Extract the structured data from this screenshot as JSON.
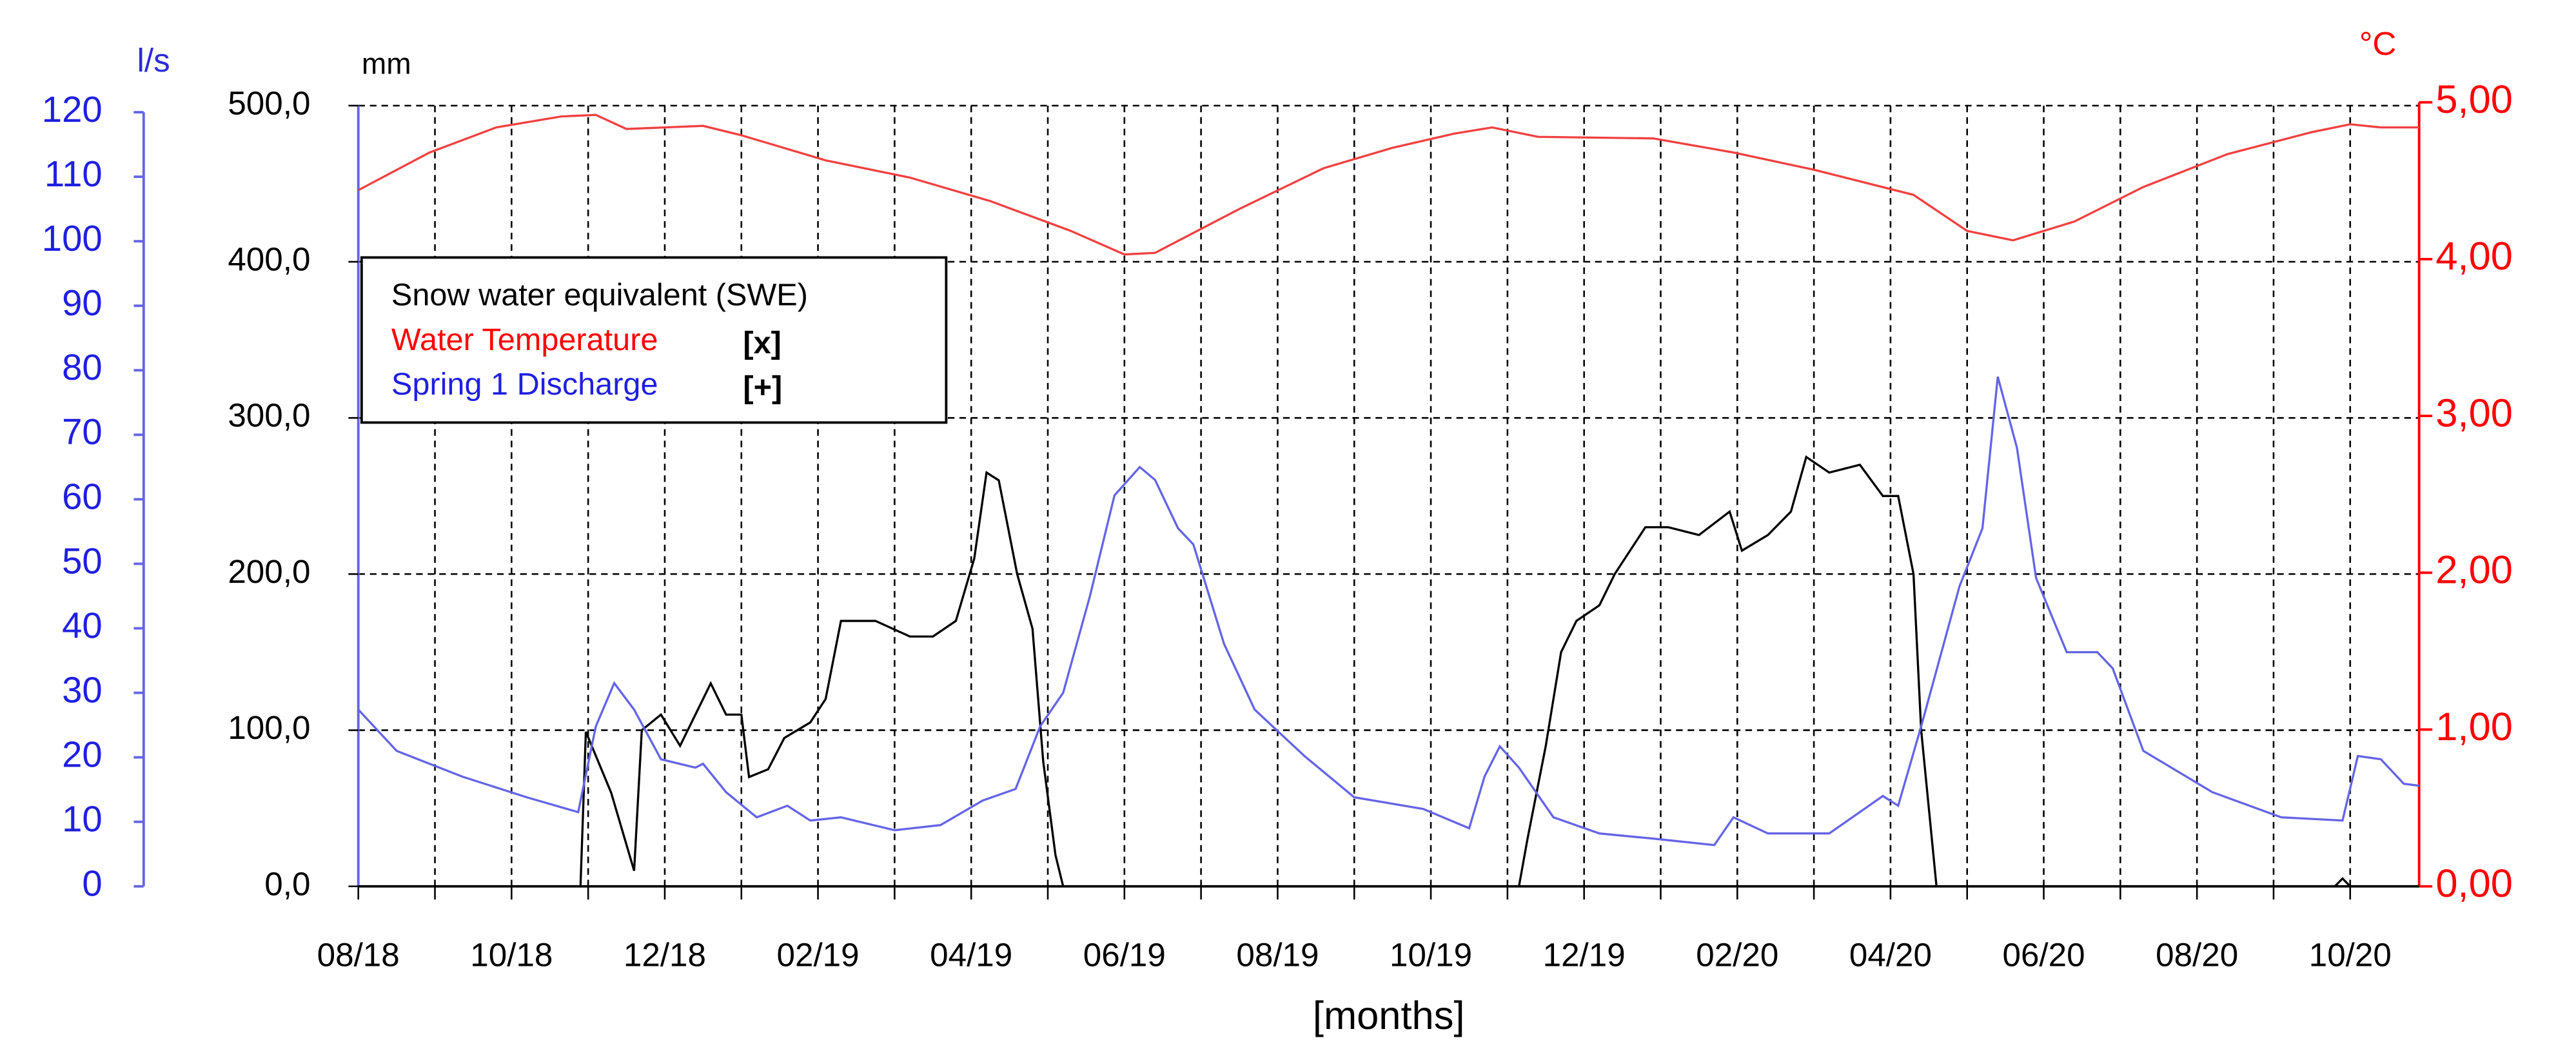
{
  "chart_data": {
    "type": "line",
    "xlabel": "[months]",
    "ylabel": "mm",
    "y2label": "°C",
    "y3label": "l/s",
    "xlim": [
      0,
      26.9
    ],
    "xticks": [
      {
        "value": 0,
        "label": "08/18"
      },
      {
        "value": 2,
        "label": "10/18"
      },
      {
        "value": 4,
        "label": "12/18"
      },
      {
        "value": 6,
        "label": "02/19"
      },
      {
        "value": 8,
        "label": "04/19"
      },
      {
        "value": 10,
        "label": "06/19"
      },
      {
        "value": 12,
        "label": "08/19"
      },
      {
        "value": 14,
        "label": "10/19"
      },
      {
        "value": 16,
        "label": "12/19"
      },
      {
        "value": 18,
        "label": "02/20"
      },
      {
        "value": 20,
        "label": "04/20"
      },
      {
        "value": 22,
        "label": "06/20"
      },
      {
        "value": 24,
        "label": "08/20"
      },
      {
        "value": 26,
        "label": "10/20"
      }
    ],
    "xminorticks": [
      1,
      3,
      5,
      7,
      9,
      11,
      13,
      15,
      17,
      19,
      21,
      23,
      25
    ],
    "ylim": [
      0,
      500
    ],
    "yticks": [
      {
        "value": 0,
        "label": "0,0"
      },
      {
        "value": 100,
        "label": "100,0"
      },
      {
        "value": 200,
        "label": "200,0"
      },
      {
        "value": 300,
        "label": "300,0"
      },
      {
        "value": 400,
        "label": "400,0"
      },
      {
        "value": 500,
        "label": "500,0"
      }
    ],
    "y2lim": [
      0,
      5
    ],
    "y2ticks": [
      {
        "value": 0,
        "label": "0,00"
      },
      {
        "value": 1,
        "label": "1,00"
      },
      {
        "value": 2,
        "label": "2,00"
      },
      {
        "value": 3,
        "label": "3,00"
      },
      {
        "value": 4,
        "label": "4,00"
      },
      {
        "value": 5,
        "label": "5,00"
      }
    ],
    "y3lim": [
      0,
      120
    ],
    "y3ticks": [
      0,
      10,
      20,
      30,
      40,
      50,
      60,
      70,
      80,
      90,
      100,
      110,
      120
    ],
    "grid": true,
    "legend": "upper left",
    "series": [
      {
        "name": "Snow water equivalent (SWE)",
        "color": "#000000",
        "axis": "y",
        "x": [
          0,
          2.9,
          2.97,
          3.3,
          3.6,
          3.7,
          3.95,
          4.2,
          4.4,
          4.6,
          4.8,
          5.0,
          5.1,
          5.35,
          5.56,
          5.9,
          6.1,
          6.3,
          6.75,
          7.2,
          7.5,
          7.8,
          8.04,
          8.2,
          8.36,
          8.6,
          8.8,
          8.94,
          9.1,
          9.2,
          15.15,
          15.26,
          15.5,
          15.7,
          15.9,
          16.2,
          16.4,
          16.8,
          17.1,
          17.5,
          17.9,
          18.06,
          18.4,
          18.7,
          18.9,
          19.2,
          19.6,
          19.9,
          20.1,
          20.3,
          20.4,
          20.6,
          25.8,
          25.9,
          26.0,
          26.9
        ],
        "values": [
          0,
          0,
          99,
          60,
          10,
          100,
          110,
          90,
          110,
          130,
          110,
          110,
          70,
          75,
          95,
          105,
          120,
          170,
          170,
          160,
          160,
          170,
          210,
          265,
          260,
          200,
          165,
          80,
          20,
          0,
          0,
          30,
          90,
          150,
          170,
          180,
          200,
          230,
          230,
          225,
          240,
          215,
          225,
          240,
          275,
          265,
          270,
          250,
          250,
          200,
          100,
          0,
          0,
          5,
          0,
          0
        ]
      },
      {
        "name": "Water Temperature",
        "color": "#f04040",
        "axis": "y2",
        "legend_marker": "[x]",
        "x": [
          0,
          0.93,
          1.8,
          2.65,
          3.1,
          3.5,
          4.5,
          5.0,
          6.1,
          7.2,
          8.25,
          9.3,
          10.0,
          10.4,
          11.5,
          12.6,
          13.5,
          14.3,
          14.8,
          15.4,
          16.9,
          17.95,
          19.0,
          20.3,
          21.0,
          21.6,
          22.4,
          23.3,
          24.4,
          25.5,
          26.0,
          26.4,
          26.9
        ],
        "values": [
          4.44,
          4.68,
          4.84,
          4.91,
          4.92,
          4.83,
          4.85,
          4.79,
          4.63,
          4.52,
          4.37,
          4.18,
          4.03,
          4.04,
          4.32,
          4.58,
          4.71,
          4.8,
          4.84,
          4.78,
          4.77,
          4.68,
          4.57,
          4.41,
          4.18,
          4.12,
          4.24,
          4.46,
          4.67,
          4.81,
          4.86,
          4.84,
          4.84
        ]
      },
      {
        "name": "Spring 1 Discharge",
        "color": "#6464e6",
        "axis": "y3",
        "legend_marker": "[+]",
        "x": [
          0,
          0.5,
          1.36,
          2.2,
          2.87,
          3.1,
          3.34,
          3.6,
          3.95,
          4.4,
          4.5,
          4.8,
          5.2,
          5.6,
          5.9,
          6.3,
          7.0,
          7.6,
          8.15,
          8.58,
          8.9,
          9.2,
          9.55,
          9.87,
          10.2,
          10.4,
          10.7,
          10.9,
          11.3,
          11.7,
          12.35,
          13.0,
          13.9,
          14.5,
          14.7,
          14.9,
          15.15,
          15.6,
          16.2,
          16.9,
          17.7,
          17.95,
          18.4,
          19.2,
          19.9,
          20.1,
          20.4,
          20.75,
          20.9,
          21.2,
          21.4,
          21.65,
          21.9,
          22.3,
          22.7,
          22.9,
          23.3,
          24.2,
          25.1,
          25.9,
          26.1,
          26.4,
          26.7,
          26.9
        ],
        "values": [
          27.4,
          21,
          17,
          13.8,
          11.5,
          24.8,
          31.5,
          27.4,
          19.7,
          18.4,
          19,
          14.6,
          10.7,
          12.5,
          10.2,
          10.7,
          8.7,
          9.5,
          13.3,
          15.1,
          24.8,
          30,
          45,
          60.6,
          65,
          63,
          55.5,
          53,
          37.6,
          27.4,
          20.2,
          13.8,
          12,
          9,
          17,
          21.7,
          18.4,
          10.7,
          8.2,
          7.4,
          6.4,
          10.7,
          8.2,
          8.2,
          14,
          12.5,
          24.8,
          40,
          46.5,
          55.5,
          79,
          68,
          47.8,
          36.3,
          36.3,
          33.8,
          21,
          14.6,
          10.7,
          10.2,
          20.2,
          19.7,
          15.9,
          15.6
        ]
      }
    ]
  }
}
